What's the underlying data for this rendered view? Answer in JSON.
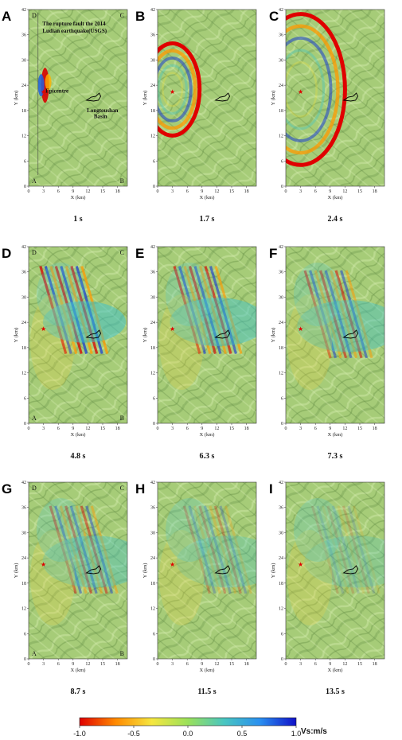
{
  "chart_data": {
    "type": "heatmap",
    "description_units": {
      "x": "X (km)",
      "y": "Y (km)",
      "value": "Vs:m/s"
    },
    "xlabel": "X (km)",
    "ylabel": "Y (km)",
    "xlim": [
      0,
      20
    ],
    "ylim": [
      0,
      42
    ],
    "xticks": [
      "0",
      "3",
      "6",
      "9",
      "12",
      "15",
      "18"
    ],
    "yticks": [
      "0",
      "6",
      "12",
      "18",
      "24",
      "30",
      "36",
      "42"
    ],
    "epicentre": {
      "x": 3,
      "y": 22.5
    },
    "panels": [
      {
        "letter": "A",
        "time": "1 s",
        "corners": true,
        "annotations": true,
        "waves": [
          {
            "kind": "core",
            "x": 3,
            "y": 24,
            "a": 1.0,
            "r": 3.2
          }
        ]
      },
      {
        "letter": "B",
        "time": "1.7 s",
        "waves": [
          {
            "kind": "ring",
            "x": 3,
            "y": 23,
            "a": 1.0,
            "r": 5.5
          }
        ]
      },
      {
        "letter": "C",
        "time": "2.4 s",
        "waves": [
          {
            "kind": "ring",
            "x": 3,
            "y": 23,
            "a": 1.0,
            "r": 9
          }
        ]
      },
      {
        "letter": "D",
        "time": "4.8 s",
        "corners": true,
        "waves": [
          {
            "kind": "band",
            "x": 10,
            "y": 26,
            "a": 1.0,
            "r": 12
          }
        ]
      },
      {
        "letter": "E",
        "time": "6.3 s",
        "waves": [
          {
            "kind": "band",
            "x": 11,
            "y": 26,
            "a": 0.85,
            "r": 14
          }
        ]
      },
      {
        "letter": "F",
        "time": "7.3 s",
        "waves": [
          {
            "kind": "band",
            "x": 11.5,
            "y": 25,
            "a": 0.7,
            "r": 15
          }
        ]
      },
      {
        "letter": "G",
        "time": "8.7 s",
        "corners": true,
        "waves": [
          {
            "kind": "band",
            "x": 12,
            "y": 25,
            "a": 0.6,
            "r": 15
          }
        ]
      },
      {
        "letter": "H",
        "time": "11.5 s",
        "waves": [
          {
            "kind": "band",
            "x": 13,
            "y": 25,
            "a": 0.35,
            "r": 15
          }
        ]
      },
      {
        "letter": "I",
        "time": "13.5 s",
        "waves": [
          {
            "kind": "band",
            "x": 13,
            "y": 25,
            "a": 0.2,
            "r": 15
          }
        ]
      }
    ],
    "corner_labels": {
      "top_left": "D",
      "top_right": "C",
      "bottom_left": "A",
      "bottom_right": "B"
    },
    "annotations": {
      "fault": [
        "The rupture fault the 2014",
        "Ludian earthquake(USGS)"
      ],
      "epicentre": "Epicentre",
      "basin": [
        "Longtoushan",
        "Basin"
      ]
    },
    "colorbar": {
      "label": "Vs:m/s",
      "min": -1.0,
      "max": 1.0,
      "ticks": [
        "-1.0",
        "-0.5",
        "0.0",
        "0.5",
        "1.0"
      ],
      "colors": [
        "#e00000",
        "#ff8a00",
        "#f5e640",
        "#9be15a",
        "#49c6c0",
        "#2a8ff0",
        "#1010c8"
      ]
    }
  }
}
